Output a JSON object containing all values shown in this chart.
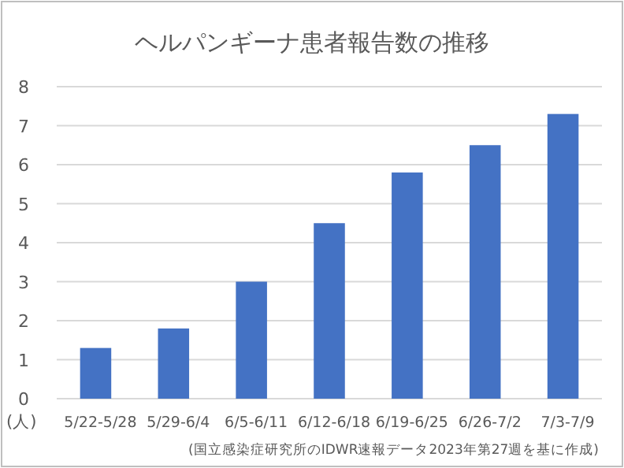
{
  "chart_data": {
    "type": "bar",
    "title": "ヘルパンギーナ患者報告数の推移",
    "ylabel": "(人)",
    "categories": [
      "5/22-5/28",
      "5/29-6/4",
      "6/5-6/11",
      "6/12-6/18",
      "6/19-6/25",
      "6/26-7/2",
      "7/3-7/9"
    ],
    "values": [
      1.3,
      1.8,
      3.0,
      4.5,
      5.8,
      6.5,
      7.3
    ],
    "color": "#4472c4",
    "ylim": [
      0,
      8
    ],
    "yticks": [
      0,
      1,
      2,
      3,
      4,
      5,
      6,
      7,
      8
    ],
    "grid": "y",
    "annotations": [
      "(国立感染症研究所のIDWR速報データ2023年第27週を基に作成)"
    ]
  }
}
